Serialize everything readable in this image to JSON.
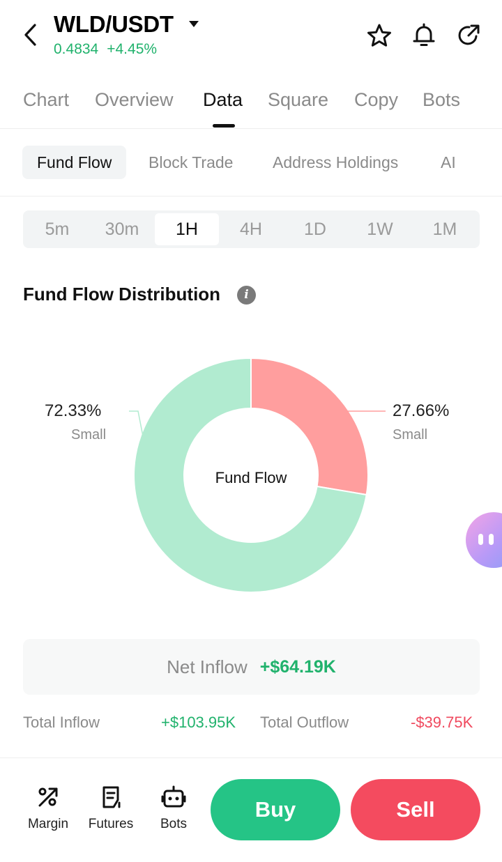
{
  "header": {
    "pair": "WLD/USDT",
    "price": "0.4834",
    "change": "+4.45%"
  },
  "main_tabs": [
    "Chart",
    "Overview",
    "Data",
    "Square",
    "Copy",
    "Bots"
  ],
  "main_tab_active": "Data",
  "sub_tabs": [
    "Fund Flow",
    "Block Trade",
    "Address Holdings",
    "AI"
  ],
  "sub_tab_active": "Fund Flow",
  "intervals": [
    "5m",
    "30m",
    "1H",
    "4H",
    "1D",
    "1W",
    "1M"
  ],
  "interval_active": "1H",
  "section": {
    "title": "Fund Flow Distribution",
    "info_icon_glyph": "i"
  },
  "chart_data": {
    "type": "pie",
    "center_label": "Fund Flow",
    "slices": [
      {
        "label": "Small",
        "percent_text": "27.66%",
        "value": 27.66,
        "color": "#ff9e9e"
      },
      {
        "label": "Small",
        "percent_text": "72.33%",
        "value": 72.33,
        "color": "#b1ebd0"
      }
    ]
  },
  "net": {
    "label": "Net Inflow",
    "value": "+$64.19K"
  },
  "totals": {
    "inflow_label": "Total Inflow",
    "inflow_value": "+$103.95K",
    "outflow_label": "Total Outflow",
    "outflow_value": "-$39.75K"
  },
  "bottom_nav": {
    "margin": "Margin",
    "futures": "Futures",
    "bots": "Bots",
    "buy": "Buy",
    "sell": "Sell"
  },
  "colors": {
    "up": "#20b26c",
    "down": "#f0495e",
    "buy": "#25c486",
    "sell": "#f44b5f"
  }
}
